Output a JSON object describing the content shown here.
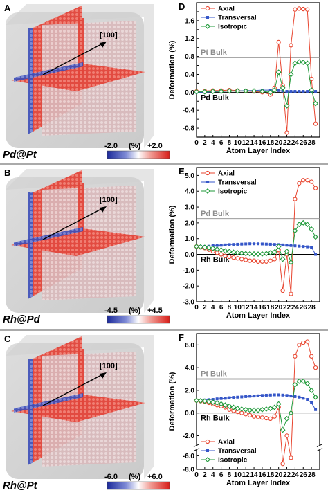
{
  "panels": [
    {
      "letter": "A",
      "material": "Pd@Pt",
      "direction": "[100]",
      "scale": {
        "min": "-2.0",
        "unit": "(%)",
        "max": "+2.0"
      }
    },
    {
      "letter": "B",
      "material": "Rh@Pd",
      "direction": "[100]",
      "scale": {
        "min": "-4.5",
        "unit": "(%)",
        "max": "+4.5"
      }
    },
    {
      "letter": "C",
      "material": "Rh@Pt",
      "direction": "[100]",
      "scale": {
        "min": "-6.0",
        "unit": "(%)",
        "max": "+6.0"
      }
    }
  ],
  "colors": {
    "axial": "#e8452f",
    "transversal": "#3556c8",
    "isotropic": "#1f9a3a",
    "reference": "#8c8c8c",
    "strain_positive": "#e8302a",
    "strain_negative": "#2b3fb8"
  },
  "chart_data": [
    {
      "letter": "D",
      "type": "line",
      "xlabel": "Atom Layer Index",
      "ylabel": "Deformation (%)",
      "xlim": [
        0,
        30
      ],
      "ylim": [
        -1.0,
        2.0
      ],
      "xticks": [
        "0",
        "2",
        "4",
        "6",
        "8",
        "10",
        "12",
        "14",
        "16",
        "18",
        "20",
        "22",
        "24",
        "26",
        "28"
      ],
      "yticks": [
        "-1.0",
        "-0.8",
        "-0.6",
        "-0.4",
        "-0.2",
        "0.0",
        "0.2",
        "0.4",
        "0.6",
        "0.8",
        "1.0",
        "1.2",
        "1.4",
        "1.6",
        "1.8"
      ],
      "yticklabels": [
        "",
        "-0.8",
        "",
        "-0.4",
        "",
        "0.0",
        "",
        "0.4",
        "",
        "0.8",
        "",
        "1.2",
        "",
        "1.6",
        ""
      ],
      "references": [
        {
          "label": "Pt Bulk",
          "y": 0.78,
          "color": "#8c8c8c",
          "label_pos": "above"
        },
        {
          "label": "Pd Bulk",
          "y": 0.0,
          "color": "#000000",
          "label_pos": "below"
        }
      ],
      "legend": {
        "position": "top-left"
      },
      "series": [
        {
          "name": "Axial",
          "marker": "circle",
          "color": "#e8452f",
          "x": [
            0,
            2,
            4,
            6,
            8,
            10,
            12,
            14,
            16,
            18,
            19,
            20,
            21,
            22,
            23,
            24,
            25,
            26,
            27,
            28,
            29
          ],
          "y": [
            0.02,
            0.03,
            0.04,
            0.04,
            0.05,
            0.04,
            0.03,
            0.02,
            0.0,
            -0.05,
            0.1,
            1.12,
            0.15,
            -0.9,
            1.05,
            1.85,
            1.87,
            1.86,
            1.85,
            0.3,
            -0.7
          ]
        },
        {
          "name": "Transversal",
          "marker": "square",
          "color": "#3556c8",
          "x": [
            0,
            2,
            4,
            6,
            8,
            10,
            12,
            14,
            16,
            18,
            19,
            20,
            21,
            22,
            23,
            24,
            25,
            26,
            27,
            28,
            29
          ],
          "y": [
            0.0,
            0.0,
            0.01,
            0.02,
            0.03,
            0.03,
            0.04,
            0.04,
            0.05,
            0.05,
            0.05,
            0.04,
            0.03,
            0.02,
            0.02,
            0.02,
            0.02,
            0.02,
            0.02,
            0.02,
            0.02
          ]
        },
        {
          "name": "Isotropic",
          "marker": "diamond",
          "color": "#1f9a3a",
          "x": [
            0,
            2,
            4,
            6,
            8,
            10,
            12,
            14,
            16,
            18,
            19,
            20,
            21,
            22,
            23,
            24,
            25,
            26,
            27,
            28,
            29
          ],
          "y": [
            0.01,
            0.01,
            0.02,
            0.02,
            0.03,
            0.03,
            0.03,
            0.03,
            0.02,
            0.0,
            0.05,
            0.45,
            0.1,
            -0.3,
            0.4,
            0.65,
            0.68,
            0.67,
            0.65,
            0.05,
            -0.25
          ]
        }
      ]
    },
    {
      "letter": "E",
      "type": "line",
      "xlabel": "Atom Layer Index",
      "ylabel": "Deformation (%)",
      "xlim": [
        0,
        30
      ],
      "ylim": [
        -3.0,
        5.5
      ],
      "xticks": [
        "0",
        "2",
        "4",
        "6",
        "8",
        "10",
        "12",
        "14",
        "16",
        "18",
        "20",
        "22",
        "24",
        "26",
        "28"
      ],
      "yticks": [
        "-3.0",
        "-2.0",
        "-1.0",
        "0.0",
        "1.0",
        "2.0",
        "3.0",
        "4.0",
        "5.0"
      ],
      "yticklabels": [
        "-3.0",
        "-2.0",
        "-1.0",
        "0.0",
        "1.0",
        "2.0",
        "3.0",
        "4.0",
        "5.0"
      ],
      "references": [
        {
          "label": "Pd Bulk",
          "y": 2.25,
          "color": "#8c8c8c",
          "label_pos": "above"
        },
        {
          "label": "Rh Bulk",
          "y": 0.0,
          "color": "#000000",
          "label_pos": "below"
        }
      ],
      "legend": {
        "position": "top-left"
      },
      "series": [
        {
          "name": "Axial",
          "marker": "circle",
          "color": "#e8452f",
          "x": [
            0,
            1,
            2,
            3,
            4,
            5,
            6,
            7,
            8,
            9,
            10,
            11,
            12,
            13,
            14,
            15,
            16,
            17,
            18,
            19,
            20,
            21,
            22,
            23,
            24,
            25,
            26,
            27,
            28,
            29
          ],
          "y": [
            0.5,
            0.45,
            0.4,
            0.3,
            0.2,
            0.1,
            0.0,
            -0.1,
            -0.15,
            -0.2,
            -0.25,
            -0.3,
            -0.35,
            -0.4,
            -0.4,
            -0.45,
            -0.45,
            -0.45,
            -0.4,
            -0.3,
            0.3,
            -2.3,
            0.0,
            -2.5,
            3.5,
            4.5,
            4.7,
            4.7,
            4.6,
            4.2
          ]
        },
        {
          "name": "Transversal",
          "marker": "square",
          "color": "#3556c8",
          "x": [
            0,
            1,
            2,
            3,
            4,
            5,
            6,
            7,
            8,
            9,
            10,
            11,
            12,
            13,
            14,
            15,
            16,
            17,
            18,
            19,
            20,
            21,
            22,
            23,
            24,
            25,
            26,
            27,
            28,
            29
          ],
          "y": [
            0.5,
            0.5,
            0.5,
            0.52,
            0.55,
            0.57,
            0.58,
            0.6,
            0.62,
            0.63,
            0.64,
            0.65,
            0.66,
            0.67,
            0.67,
            0.67,
            0.66,
            0.65,
            0.64,
            0.63,
            0.62,
            0.6,
            0.58,
            0.56,
            0.54,
            0.52,
            0.5,
            0.48,
            0.45,
            0.0
          ]
        },
        {
          "name": "Isotropic",
          "marker": "diamond",
          "color": "#1f9a3a",
          "x": [
            0,
            1,
            2,
            3,
            4,
            5,
            6,
            7,
            8,
            9,
            10,
            11,
            12,
            13,
            14,
            15,
            16,
            17,
            18,
            19,
            20,
            21,
            22,
            23,
            24,
            25,
            26,
            27,
            28,
            29
          ],
          "y": [
            0.5,
            0.48,
            0.45,
            0.42,
            0.38,
            0.33,
            0.28,
            0.22,
            0.18,
            0.14,
            0.1,
            0.08,
            0.05,
            0.04,
            0.03,
            0.02,
            0.03,
            0.05,
            0.1,
            0.15,
            0.5,
            -0.3,
            0.2,
            -0.5,
            1.5,
            1.9,
            2.0,
            1.9,
            1.6,
            1.1
          ]
        }
      ]
    },
    {
      "letter": "F",
      "type": "line",
      "xlabel": "Atom Layer Index",
      "ylabel": "Deformation (%)",
      "xlim": [
        0,
        30
      ],
      "ylim": [
        -8.0,
        7.0
      ],
      "axis_break": {
        "from": -2.8,
        "to": -5.2
      },
      "xticks": [
        "0",
        "2",
        "4",
        "6",
        "8",
        "10",
        "12",
        "14",
        "16",
        "18",
        "20",
        "22",
        "24",
        "26",
        "28"
      ],
      "yticks": [
        "-8.0",
        "-6.0",
        "-2.0",
        "0.0",
        "2.0",
        "4.0",
        "6.0"
      ],
      "yticklabels": [
        "-8.0",
        "-6.0",
        "-2.0",
        "0.0",
        "2.0",
        "4.0",
        "6.0"
      ],
      "references": [
        {
          "label": "Pt Bulk",
          "y": 3.0,
          "color": "#8c8c8c",
          "label_pos": "above"
        },
        {
          "label": "Rh Bulk",
          "y": 0.0,
          "color": "#000000",
          "label_pos": "below"
        }
      ],
      "legend": {
        "position": "bottom-left"
      },
      "series": [
        {
          "name": "Axial",
          "marker": "circle",
          "color": "#e8452f",
          "x": [
            0,
            1,
            2,
            3,
            4,
            5,
            6,
            7,
            8,
            9,
            10,
            11,
            12,
            13,
            14,
            15,
            16,
            17,
            18,
            19,
            20,
            21,
            22,
            23,
            24,
            25,
            26,
            27,
            28,
            29
          ],
          "y": [
            1.1,
            1.05,
            1.0,
            0.9,
            0.8,
            0.7,
            0.6,
            0.5,
            0.3,
            0.2,
            0.1,
            0.0,
            -0.1,
            -0.2,
            -0.3,
            -0.35,
            -0.4,
            -0.45,
            -0.5,
            -0.3,
            0.5,
            -7.2,
            -2.0,
            -6.3,
            5.0,
            6.0,
            6.2,
            6.3,
            5.0,
            4.0
          ]
        },
        {
          "name": "Transversal",
          "marker": "square",
          "color": "#3556c8",
          "x": [
            0,
            1,
            2,
            3,
            4,
            5,
            6,
            7,
            8,
            9,
            10,
            11,
            12,
            13,
            14,
            15,
            16,
            17,
            18,
            19,
            20,
            21,
            22,
            23,
            24,
            25,
            26,
            27,
            28,
            29
          ],
          "y": [
            1.1,
            1.12,
            1.15,
            1.18,
            1.2,
            1.25,
            1.28,
            1.3,
            1.35,
            1.38,
            1.4,
            1.42,
            1.45,
            1.48,
            1.5,
            1.52,
            1.55,
            1.57,
            1.58,
            1.6,
            1.6,
            1.58,
            1.55,
            1.5,
            1.45,
            1.4,
            1.3,
            1.2,
            0.9,
            0.3
          ]
        },
        {
          "name": "Isotropic",
          "marker": "diamond",
          "color": "#1f9a3a",
          "x": [
            0,
            1,
            2,
            3,
            4,
            5,
            6,
            7,
            8,
            9,
            10,
            11,
            12,
            13,
            14,
            15,
            16,
            17,
            18,
            19,
            20,
            21,
            22,
            23,
            24,
            25,
            26,
            27,
            28,
            29
          ],
          "y": [
            1.1,
            1.08,
            1.05,
            1.0,
            0.95,
            0.9,
            0.8,
            0.7,
            0.6,
            0.5,
            0.4,
            0.35,
            0.3,
            0.25,
            0.25,
            0.25,
            0.3,
            0.35,
            0.4,
            0.5,
            0.8,
            -1.5,
            -0.5,
            0.0,
            2.5,
            2.8,
            2.8,
            2.6,
            2.0,
            1.4
          ]
        }
      ]
    }
  ]
}
